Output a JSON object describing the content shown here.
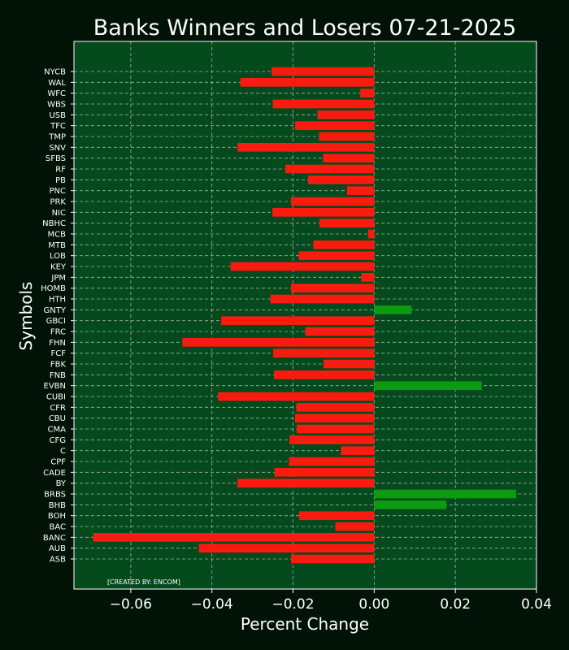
{
  "colors": {
    "figure_bg": "#011307",
    "plot_bg": "#044a1c",
    "negative": "#f91a10",
    "positive": "#0c9a10",
    "grid": "#c8c8c8",
    "text": "#ffffff"
  },
  "chart_data": {
    "type": "bar",
    "orientation": "horizontal",
    "title": "Banks Winners and Losers 07-21-2025",
    "xlabel": "Percent Change",
    "ylabel": "Symbols",
    "xlim": [
      -0.074,
      0.04
    ],
    "xticks": [
      -0.06,
      -0.04,
      -0.02,
      0.0,
      0.02,
      0.04
    ],
    "xtick_labels": [
      "−0.06",
      "−0.04",
      "−0.02",
      "0.00",
      "0.02",
      "0.04"
    ],
    "grid": true,
    "annotation": "[CREATED BY: ENCOM]",
    "categories": [
      "ASB",
      "AUB",
      "BANC",
      "BAC",
      "BOH",
      "BHB",
      "BRBS",
      "BY",
      "CADE",
      "CPF",
      "C",
      "CFG",
      "CMA",
      "CBU",
      "CFR",
      "CUBI",
      "EVBN",
      "FNB",
      "FBK",
      "FCF",
      "FHN",
      "FRC",
      "GBCI",
      "GNTY",
      "HTH",
      "HOMB",
      "JPM",
      "KEY",
      "LOB",
      "MTB",
      "MCB",
      "NBHC",
      "NIC",
      "PRK",
      "PNC",
      "PB",
      "RF",
      "SFBS",
      "SNV",
      "TMP",
      "TFC",
      "USB",
      "WBS",
      "WFC",
      "WAL",
      "NYCB"
    ],
    "values": [
      -0.0205,
      -0.0432,
      -0.0693,
      -0.0096,
      -0.0185,
      0.0178,
      0.035,
      -0.0337,
      -0.0246,
      -0.021,
      -0.0082,
      -0.0209,
      -0.0191,
      -0.0195,
      -0.0192,
      -0.0385,
      0.0265,
      -0.0247,
      -0.0125,
      -0.0249,
      -0.0473,
      -0.017,
      -0.0377,
      0.0092,
      -0.0256,
      -0.0205,
      -0.0032,
      -0.0354,
      -0.0186,
      -0.015,
      -0.0015,
      -0.0135,
      -0.0251,
      -0.0205,
      -0.0067,
      -0.0163,
      -0.0219,
      -0.0126,
      -0.0337,
      -0.0136,
      -0.0195,
      -0.014,
      -0.025,
      -0.0034,
      -0.033,
      -0.0253
    ]
  }
}
